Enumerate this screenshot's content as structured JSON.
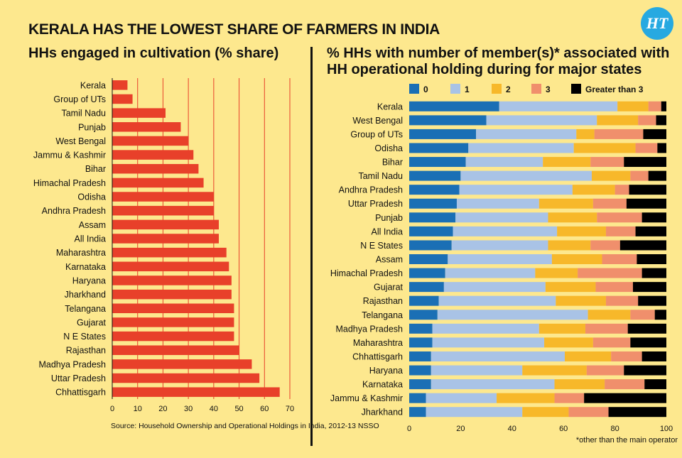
{
  "headline": "KERALA HAS THE LOWEST SHARE OF FARMERS IN INDIA",
  "logo_text": "HT",
  "source": "Source: Household Ownership and Operational Holdings in India, 2012-13 NSSO",
  "footnote": "*other than the main operator",
  "colors": {
    "bar_left": "#e8402a",
    "grid": "#e8402a",
    "s0": "#1a6fb5",
    "s1": "#a9c3e6",
    "s2": "#f7b82a",
    "s3": "#f08f6c",
    "s4": "#000000"
  },
  "chart_data": [
    {
      "type": "bar",
      "orientation": "horizontal",
      "title": "HHs engaged in cultivation (% share)",
      "categories": [
        "Kerala",
        "Group of UTs",
        "Tamil Nadu",
        "Punjab",
        "West Bengal",
        "Jammu & Kashmir",
        "Bihar",
        "Himachal Pradesh",
        "Odisha",
        "Andhra Pradesh",
        "Assam",
        "All India",
        "Maharashtra",
        "Karnataka",
        "Haryana",
        "Jharkhand",
        "Telangana",
        "Gujarat",
        "N E States",
        "Rajasthan",
        "Madhya Pradesh",
        "Uttar Pradesh",
        "Chhattisgarh"
      ],
      "values": [
        6,
        8,
        21,
        27,
        30,
        32,
        34,
        36,
        40,
        40,
        42,
        42,
        45,
        46,
        47,
        47,
        48,
        48,
        48,
        50,
        55,
        58,
        66
      ],
      "xlim": [
        0,
        70
      ],
      "xticks": [
        0,
        10,
        20,
        30,
        40,
        50,
        60,
        70
      ],
      "grid": true
    },
    {
      "type": "bar",
      "stacked": true,
      "orientation": "horizontal",
      "title": "% HHs with number of member(s)* associated with HH operational holding during for major states",
      "legend_position": "top",
      "categories": [
        "Kerala",
        "West Bengal",
        "Group of UTs",
        "Odisha",
        "Bihar",
        "Tamil Nadu",
        "Andhra Pradesh",
        "Uttar Pradesh",
        "Punjab",
        "All India",
        "N E States",
        "Assam",
        "Himachal Pradesh",
        "Gujarat",
        "Rajasthan",
        "Telangana",
        "Madhya Pradesh",
        "Maharashtra",
        "Chhattisgarh",
        "Haryana",
        "Karnataka",
        "Jammu & Kashmir",
        "Jharkhand"
      ],
      "series": [
        {
          "name": "0",
          "values": [
            35,
            30,
            26,
            23,
            22,
            20,
            19.5,
            18.5,
            18,
            17,
            16.5,
            15,
            14,
            13.5,
            11.5,
            11,
            9,
            9,
            8.5,
            8.5,
            8.5,
            6.5,
            6.5
          ]
        },
        {
          "name": "1",
          "values": [
            46,
            43,
            39,
            41,
            30,
            51,
            44,
            32,
            36,
            40.5,
            37.5,
            40.5,
            35,
            39.5,
            45.5,
            58.5,
            41.5,
            43.5,
            52,
            35.5,
            48,
            27.5,
            37.5
          ]
        },
        {
          "name": "2",
          "values": [
            12,
            16,
            7,
            24,
            18.5,
            15,
            16.5,
            21,
            19,
            19,
            16.5,
            19.5,
            16.5,
            19.5,
            19.5,
            16.5,
            18,
            19,
            18,
            25,
            19.5,
            22.5,
            18
          ]
        },
        {
          "name": "3",
          "values": [
            5,
            7,
            19,
            8.5,
            13,
            7,
            5.5,
            13,
            17.5,
            11.5,
            11.5,
            13.5,
            25,
            14.5,
            12.5,
            9.5,
            16.5,
            14.5,
            12,
            14.5,
            15.5,
            11.5,
            15.5
          ]
        },
        {
          "name": "Greater than 3",
          "values": [
            2,
            4,
            9,
            3.5,
            16.5,
            7,
            14.5,
            15.5,
            9.5,
            12,
            18,
            11.5,
            9.5,
            13,
            11,
            4.5,
            15,
            14,
            9.5,
            16.5,
            8.5,
            32,
            22.5
          ]
        }
      ],
      "xlim": [
        0,
        100
      ],
      "xticks": [
        0,
        20,
        40,
        60,
        80,
        100
      ]
    }
  ]
}
